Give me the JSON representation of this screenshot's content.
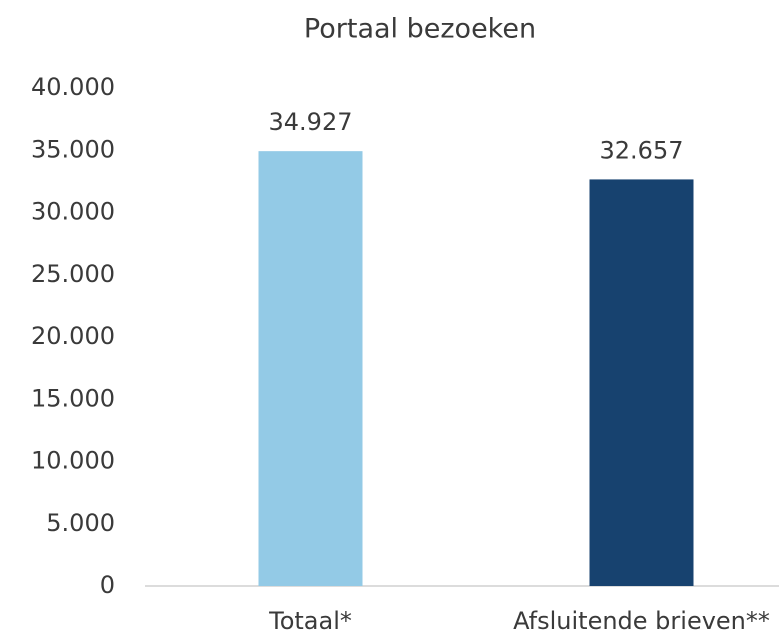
{
  "chart_data": {
    "type": "bar",
    "title": "Portaal bezoeken",
    "categories": [
      "Totaal*",
      "Afsluitende brieven**"
    ],
    "values": [
      34927,
      32657
    ],
    "value_labels": [
      "34.927",
      "32.657"
    ],
    "colors": [
      "#93cae6",
      "#17426f"
    ],
    "ylim": [
      0,
      40000
    ],
    "yticks": [
      0,
      {
        "value": 5000,
        "label": "5.000"
      },
      {
        "value": 10000,
        "label": "10.000"
      },
      {
        "value": 15000,
        "label": "15.000"
      },
      {
        "value": 20000,
        "label": "20.000"
      },
      {
        "value": 25000,
        "label": "25.000"
      },
      {
        "value": 30000,
        "label": "30.000"
      },
      {
        "value": 35000,
        "label": "35.000"
      },
      {
        "value": 40000,
        "label": "40.000"
      }
    ],
    "grid": false
  }
}
